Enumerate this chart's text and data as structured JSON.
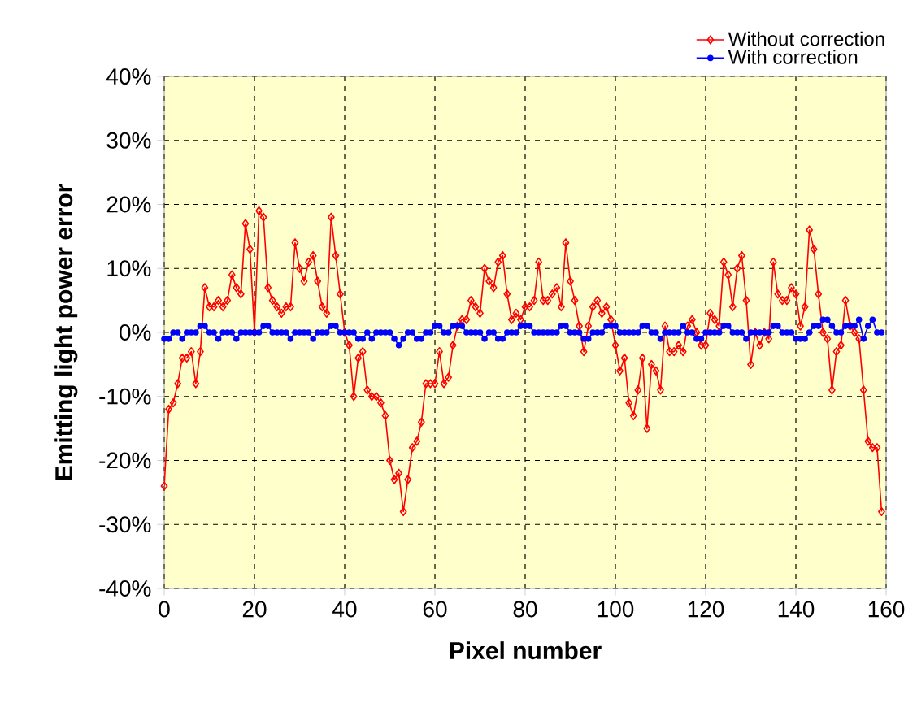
{
  "chart_data": {
    "type": "line",
    "xlabel": "Pixel number",
    "ylabel": "Emitting light power error",
    "x": [
      0,
      1,
      2,
      3,
      4,
      5,
      6,
      7,
      8,
      9,
      10,
      11,
      12,
      13,
      14,
      15,
      16,
      17,
      18,
      19,
      20,
      21,
      22,
      23,
      24,
      25,
      26,
      27,
      28,
      29,
      30,
      31,
      32,
      33,
      34,
      35,
      36,
      37,
      38,
      39,
      40,
      41,
      42,
      43,
      44,
      45,
      46,
      47,
      48,
      49,
      50,
      51,
      52,
      53,
      54,
      55,
      56,
      57,
      58,
      59,
      60,
      61,
      62,
      63,
      64,
      65,
      66,
      67,
      68,
      69,
      70,
      71,
      72,
      73,
      74,
      75,
      76,
      77,
      78,
      79,
      80,
      81,
      82,
      83,
      84,
      85,
      86,
      87,
      88,
      89,
      90,
      91,
      92,
      93,
      94,
      95,
      96,
      97,
      98,
      99,
      100,
      101,
      102,
      103,
      104,
      105,
      106,
      107,
      108,
      109,
      110,
      111,
      112,
      113,
      114,
      115,
      116,
      117,
      118,
      119,
      120,
      121,
      122,
      123,
      124,
      125,
      126,
      127,
      128,
      129,
      130,
      131,
      132,
      133,
      134,
      135,
      136,
      137,
      138,
      139,
      140,
      141,
      142,
      143,
      144,
      145,
      146,
      147,
      148,
      149,
      150,
      151,
      152,
      153,
      154,
      155,
      156,
      157,
      158,
      159
    ],
    "series": [
      {
        "name": "Without correction",
        "color": "#ff0000",
        "marker": "diamond",
        "values": [
          -24,
          -12,
          -11,
          -8,
          -4,
          -4,
          -3,
          -8,
          -3,
          7,
          4,
          4,
          5,
          4,
          5,
          9,
          7,
          6,
          17,
          13,
          0,
          19,
          18,
          7,
          5,
          4,
          3,
          4,
          4,
          14,
          10,
          8,
          11,
          12,
          8,
          4,
          3,
          18,
          12,
          6,
          0,
          -2,
          -10,
          -4,
          -3,
          -9,
          -10,
          -10,
          -11,
          -13,
          -20,
          -23,
          -22,
          -28,
          -23,
          -18,
          -17,
          -14,
          -8,
          -8,
          -8,
          -3,
          -8,
          -7,
          -2,
          1,
          2,
          2,
          5,
          4,
          3,
          10,
          8,
          7,
          11,
          12,
          6,
          2,
          3,
          2,
          4,
          4,
          5,
          11,
          5,
          5,
          6,
          7,
          4,
          14,
          8,
          5,
          1,
          -3,
          1,
          4,
          5,
          3,
          4,
          2,
          -2,
          -6,
          -4,
          -11,
          -13,
          -9,
          -4,
          -15,
          -5,
          -6,
          -9,
          1,
          -3,
          -3,
          -2,
          -3,
          1,
          2,
          0,
          -2,
          -2,
          3,
          2,
          1,
          11,
          9,
          4,
          10,
          12,
          5,
          -5,
          0,
          -2,
          0,
          -1,
          11,
          6,
          5,
          5,
          7,
          6,
          1,
          4,
          16,
          13,
          6,
          0,
          -1,
          -9,
          -3,
          -2,
          5,
          1,
          0,
          -1,
          -9,
          -17,
          -18,
          -18,
          -28
        ]
      },
      {
        "name": "With correction",
        "color": "#0000ff",
        "marker": "circle",
        "values": [
          -1,
          -1,
          0,
          0,
          -1,
          0,
          0,
          0,
          1,
          1,
          0,
          0,
          -1,
          0,
          0,
          0,
          -1,
          0,
          0,
          0,
          0,
          0,
          1,
          1,
          0,
          0,
          0,
          0,
          -1,
          0,
          0,
          0,
          0,
          -1,
          0,
          0,
          0,
          1,
          1,
          0,
          0,
          0,
          0,
          -1,
          -1,
          0,
          -1,
          0,
          0,
          0,
          0,
          -1,
          -2,
          -1,
          0,
          0,
          -1,
          -1,
          0,
          0,
          1,
          1,
          0,
          0,
          1,
          1,
          1,
          0,
          0,
          0,
          0,
          -1,
          0,
          0,
          -1,
          -1,
          0,
          0,
          0,
          1,
          1,
          1,
          0,
          0,
          0,
          0,
          0,
          0,
          1,
          1,
          0,
          0,
          0,
          -1,
          -1,
          0,
          0,
          0,
          1,
          1,
          1,
          0,
          0,
          0,
          0,
          0,
          1,
          1,
          0,
          0,
          -1,
          0,
          0,
          0,
          0,
          1,
          0,
          0,
          -1,
          -1,
          0,
          0,
          0,
          0,
          1,
          1,
          0,
          0,
          0,
          -1,
          0,
          0,
          0,
          0,
          0,
          1,
          1,
          0,
          0,
          0,
          -1,
          -1,
          -1,
          0,
          1,
          1,
          2,
          2,
          1,
          0,
          0,
          1,
          1,
          1,
          2,
          -1,
          1,
          2,
          0,
          0
        ]
      }
    ],
    "xlim": [
      0,
      160
    ],
    "xticks": [
      0,
      20,
      40,
      60,
      80,
      100,
      120,
      140,
      160
    ],
    "ylim": [
      -40,
      40
    ],
    "yticks": [
      {
        "value": -40,
        "label": "-40%"
      },
      {
        "value": -30,
        "label": "-30%"
      },
      {
        "value": -20,
        "label": "-20%"
      },
      {
        "value": -10,
        "label": "-10%"
      },
      {
        "value": 0,
        "label": "0%"
      },
      {
        "value": 10,
        "label": "10%"
      },
      {
        "value": 20,
        "label": "20%"
      },
      {
        "value": 30,
        "label": "30%"
      },
      {
        "value": 40,
        "label": "40%"
      }
    ],
    "grid": true,
    "legend": "top right"
  }
}
